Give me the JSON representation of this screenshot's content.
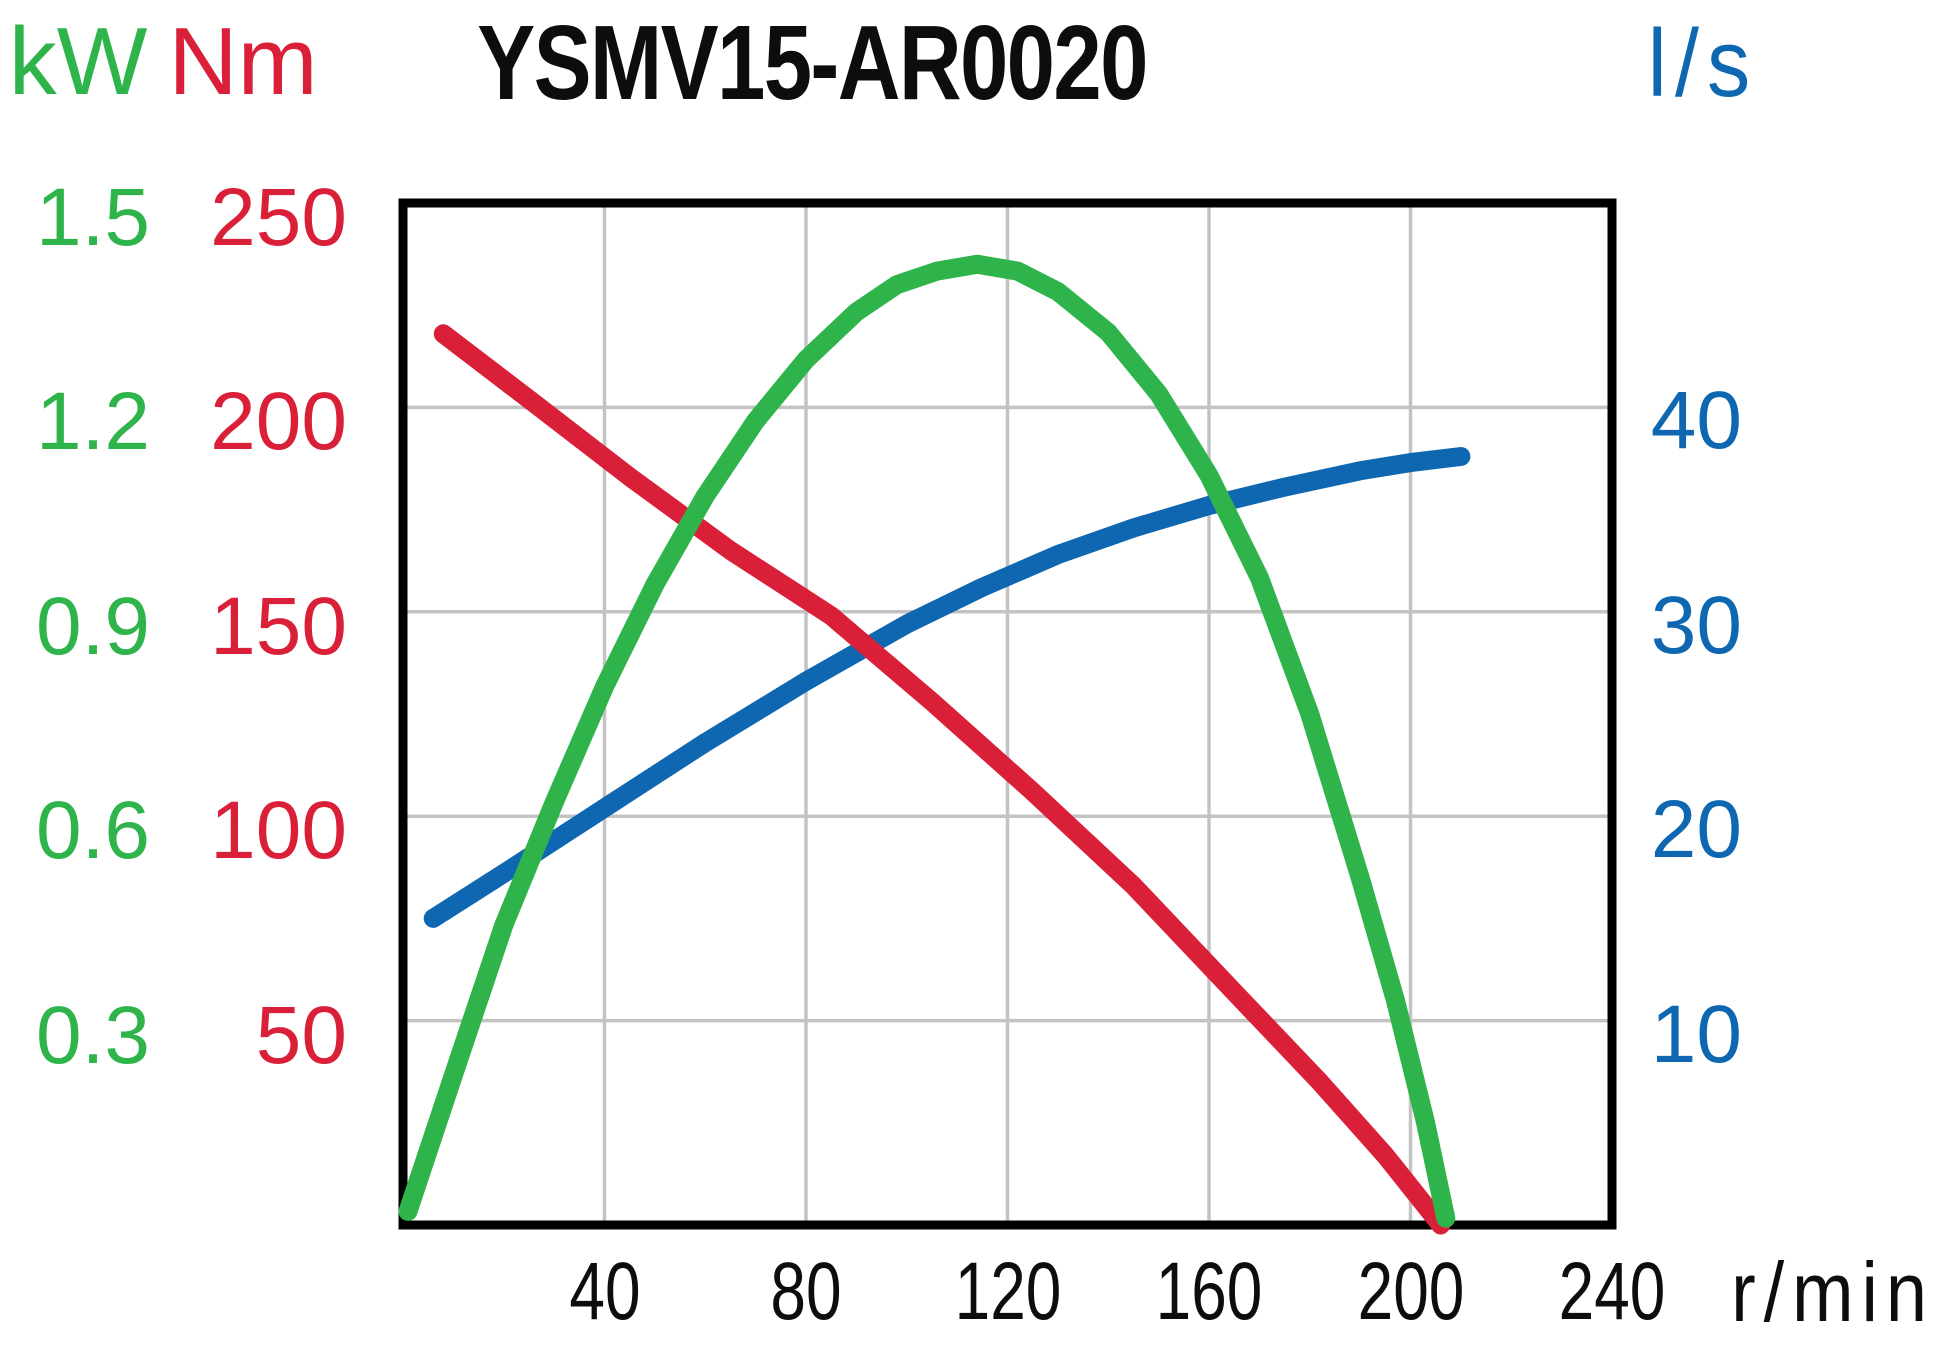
{
  "header": {
    "title": "YSMV15-AR0020",
    "left_unit_kw": "kW",
    "left_unit_nm": "Nm",
    "right_unit": "l/s",
    "x_unit": "r/min"
  },
  "colors": {
    "power_green": "#2fb44b",
    "torque_red": "#d92038",
    "flow_blue": "#0f67b2",
    "grid": "#c3c3c3",
    "border": "#000000",
    "text": "#0d0d0d",
    "background": "#ffffff"
  },
  "axes": {
    "kw_ticks": [
      "1.5",
      "1.2",
      "0.9",
      "0.6",
      "0.3"
    ],
    "nm_ticks": [
      "250",
      "200",
      "150",
      "100",
      "50"
    ],
    "ls_ticks": [
      "40",
      "30",
      "20",
      "10"
    ],
    "x_ticks": [
      "40",
      "80",
      "120",
      "160",
      "200",
      "240"
    ]
  },
  "chart_data": {
    "type": "line",
    "title": "YSMV15-AR0020",
    "xlabel": "r/min",
    "x_range": [
      0,
      240
    ],
    "x_gridlines": [
      40,
      80,
      120,
      160,
      200
    ],
    "y_axes": [
      {
        "label": "kW",
        "side": "left",
        "min": 0,
        "max": 1.5,
        "ticks": [
          0.3,
          0.6,
          0.9,
          1.2,
          1.5
        ]
      },
      {
        "label": "Nm",
        "side": "left",
        "min": 0,
        "max": 250,
        "ticks": [
          50,
          100,
          150,
          200,
          250
        ]
      },
      {
        "label": "l/s",
        "side": "right",
        "min": 0,
        "max": 50,
        "ticks": [
          10,
          20,
          30,
          40
        ]
      }
    ],
    "grid_y_values_nm": [
      50,
      100,
      150,
      200
    ],
    "legend": "none",
    "series": [
      {
        "name": "flow",
        "unit": "l/s",
        "axis_max": 50,
        "color_key": "flow_blue",
        "points": [
          [
            6,
            15.0
          ],
          [
            20,
            17.2
          ],
          [
            40,
            20.4
          ],
          [
            60,
            23.6
          ],
          [
            80,
            26.6
          ],
          [
            100,
            29.4
          ],
          [
            115,
            31.2
          ],
          [
            130,
            32.8
          ],
          [
            145,
            34.1
          ],
          [
            160,
            35.2
          ],
          [
            175,
            36.1
          ],
          [
            190,
            36.9
          ],
          [
            200,
            37.3
          ],
          [
            210,
            37.6
          ]
        ]
      },
      {
        "name": "torque",
        "unit": "Nm",
        "axis_max": 250,
        "color_key": "torque_red",
        "points": [
          [
            8,
            218
          ],
          [
            25,
            202
          ],
          [
            45,
            183
          ],
          [
            65,
            165
          ],
          [
            85,
            149
          ],
          [
            105,
            128
          ],
          [
            125,
            106
          ],
          [
            145,
            83
          ],
          [
            165,
            57
          ],
          [
            182,
            35
          ],
          [
            195,
            17
          ],
          [
            206,
            0
          ]
        ]
      },
      {
        "name": "power",
        "unit": "kW",
        "axis_max": 1.5,
        "color_key": "power_green",
        "points": [
          [
            1,
            0.02
          ],
          [
            10,
            0.22
          ],
          [
            20,
            0.44
          ],
          [
            30,
            0.62
          ],
          [
            40,
            0.79
          ],
          [
            50,
            0.94
          ],
          [
            60,
            1.07
          ],
          [
            70,
            1.18
          ],
          [
            80,
            1.27
          ],
          [
            90,
            1.34
          ],
          [
            98,
            1.38
          ],
          [
            106,
            1.4
          ],
          [
            114,
            1.41
          ],
          [
            122,
            1.4
          ],
          [
            130,
            1.37
          ],
          [
            140,
            1.31
          ],
          [
            150,
            1.22
          ],
          [
            160,
            1.1
          ],
          [
            170,
            0.95
          ],
          [
            180,
            0.75
          ],
          [
            190,
            0.51
          ],
          [
            197,
            0.33
          ],
          [
            203,
            0.15
          ],
          [
            207,
            0.01
          ]
        ]
      }
    ]
  }
}
